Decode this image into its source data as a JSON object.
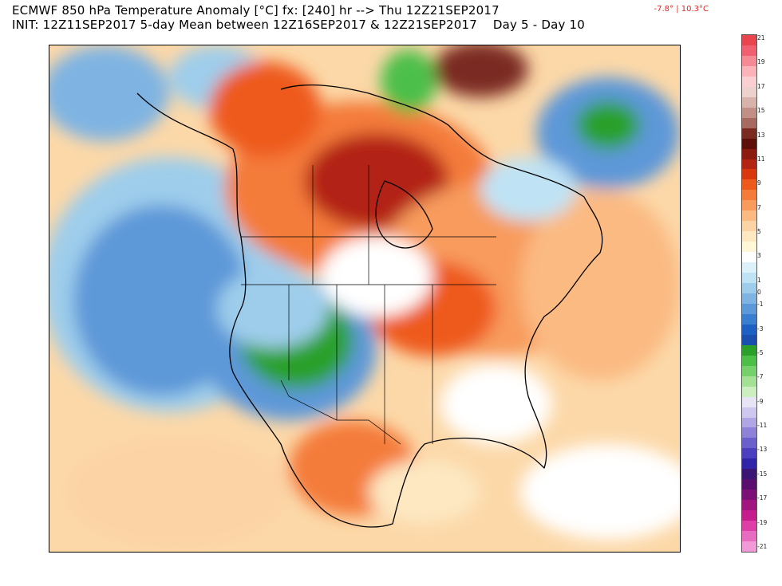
{
  "header": {
    "line1": "ECMWF 850 hPa Temperature Anomaly [°C] fx: [240] hr --> Thu 12Z21SEP2017",
    "line2": "INIT: 12Z11SEP2017 5-day Mean between 12Z16SEP2017 & 12Z21SEP2017    Day 5 - Day 10",
    "range": "-7.8° | 10.3°C"
  },
  "colorbar": {
    "ticks": [
      "21",
      "19",
      "17",
      "15",
      "13",
      "11",
      "9",
      "7",
      "5",
      "3",
      "1",
      "-1",
      "-3",
      "-5",
      "-7",
      "-9",
      "-11",
      "-13",
      "-15",
      "-17",
      "-19",
      "-21"
    ],
    "colors": [
      "#e8454f",
      "#f06070",
      "#f58a95",
      "#fab3b9",
      "#f9cfd1",
      "#ecd1cd",
      "#d7b3ac",
      "#c18f86",
      "#a66a60",
      "#7a2a20",
      "#5e0f0a",
      "#8c1a10",
      "#b32412",
      "#d9380f",
      "#ee5a1c",
      "#f47b3a",
      "#f89b5d",
      "#fbba82",
      "#fcd3a4",
      "#fde8c2",
      "#fff7d8",
      "#ffffff",
      "#ddf1fa",
      "#bfe3f4",
      "#9ecdeb",
      "#7fb4e2",
      "#5d98d8",
      "#3a7ed0",
      "#1e5fc4",
      "#1a4fb0",
      "#2aa02b",
      "#4bbf48",
      "#76d16c",
      "#a4e095",
      "#cdeec0",
      "#e7e4f6",
      "#cfc8ee",
      "#b0a6e4",
      "#8d82d8",
      "#6b5fcc",
      "#4c3fbf",
      "#3025a8",
      "#3a1573",
      "#5a0f6e",
      "#7b1077",
      "#a0157f",
      "#c51e8c",
      "#dd3fa6",
      "#e86cc0",
      "#f29ad7"
    ]
  },
  "legend": {
    "zero_label": "0",
    "units": "°C"
  }
}
